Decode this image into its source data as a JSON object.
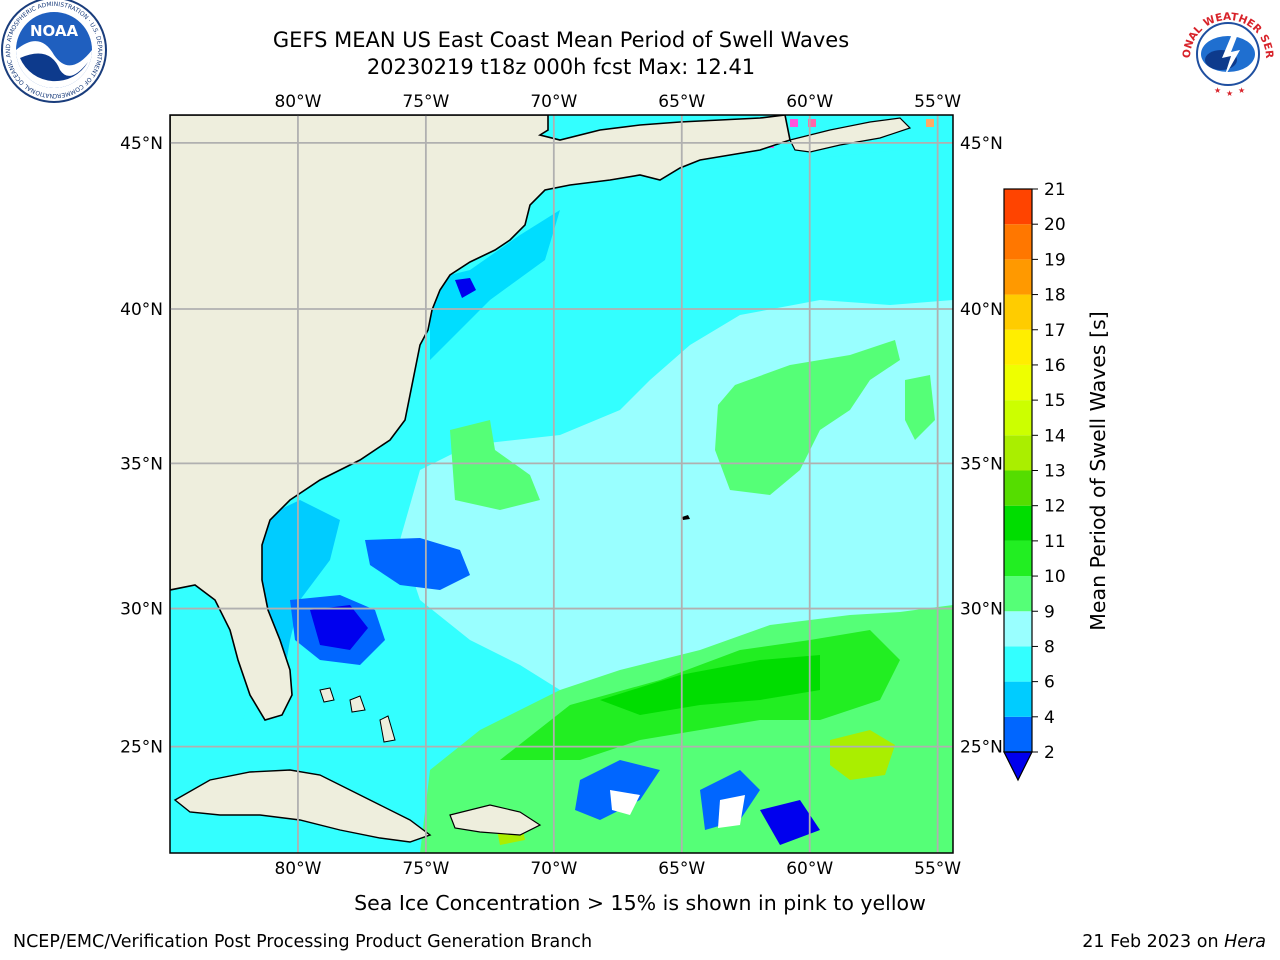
{
  "header": {
    "title_line1": "GEFS MEAN US East Coast Mean Period of Swell Waves",
    "title_line2": "20230219 t18z 000h fcst   Max: 12.41"
  },
  "logos": {
    "noaa_text": "NOAA",
    "noaa_ring_text": "NATIONAL OCEANIC AND ATMOSPHERIC ADMINISTRATION · U.S. DEPARTMENT OF COMMERCE",
    "nws_ring_text": "NATIONAL WEATHER SERVICE"
  },
  "map": {
    "lon_labels": [
      "80°W",
      "75°W",
      "70°W",
      "65°W",
      "60°W",
      "55°W"
    ],
    "lat_labels": [
      "45°N",
      "40°N",
      "35°N",
      "30°N",
      "25°N"
    ],
    "lon_values": [
      -80,
      -75,
      -70,
      -65,
      -60,
      -55
    ],
    "lat_values": [
      45,
      40,
      35,
      30,
      25
    ],
    "extent": {
      "lon_min": -85,
      "lon_max": -54.4,
      "lat_min": 21.0,
      "lat_max": 45.8
    },
    "colors": {
      "land": "#eeeedd",
      "ocean_default": "#99ffff",
      "gridline": "#b0b0b0"
    }
  },
  "colorbar": {
    "label": "Mean Period of Swell Waves [s]",
    "ticks": [
      "2",
      "4",
      "6",
      "8",
      "9",
      "10",
      "11",
      "12",
      "13",
      "14",
      "15",
      "16",
      "17",
      "18",
      "19",
      "20",
      "21"
    ],
    "colors": [
      "#0066ff",
      "#00ccff",
      "#33ffff",
      "#99ffff",
      "#55ff77",
      "#22ee22",
      "#00dd00",
      "#55dd00",
      "#aaee00",
      "#ccff00",
      "#eeff00",
      "#ffee00",
      "#ffcc00",
      "#ff9900",
      "#ff7700",
      "#ff4400",
      "#ff1100"
    ],
    "under_color": "#0000ee"
  },
  "footer": {
    "note": "Sea Ice Concentration > 15% is shown in pink to yellow",
    "credit": "NCEP/EMC/Verification Post Processing Product Generation Branch",
    "date": "21 Feb 2023 on",
    "machine": "Hera"
  }
}
